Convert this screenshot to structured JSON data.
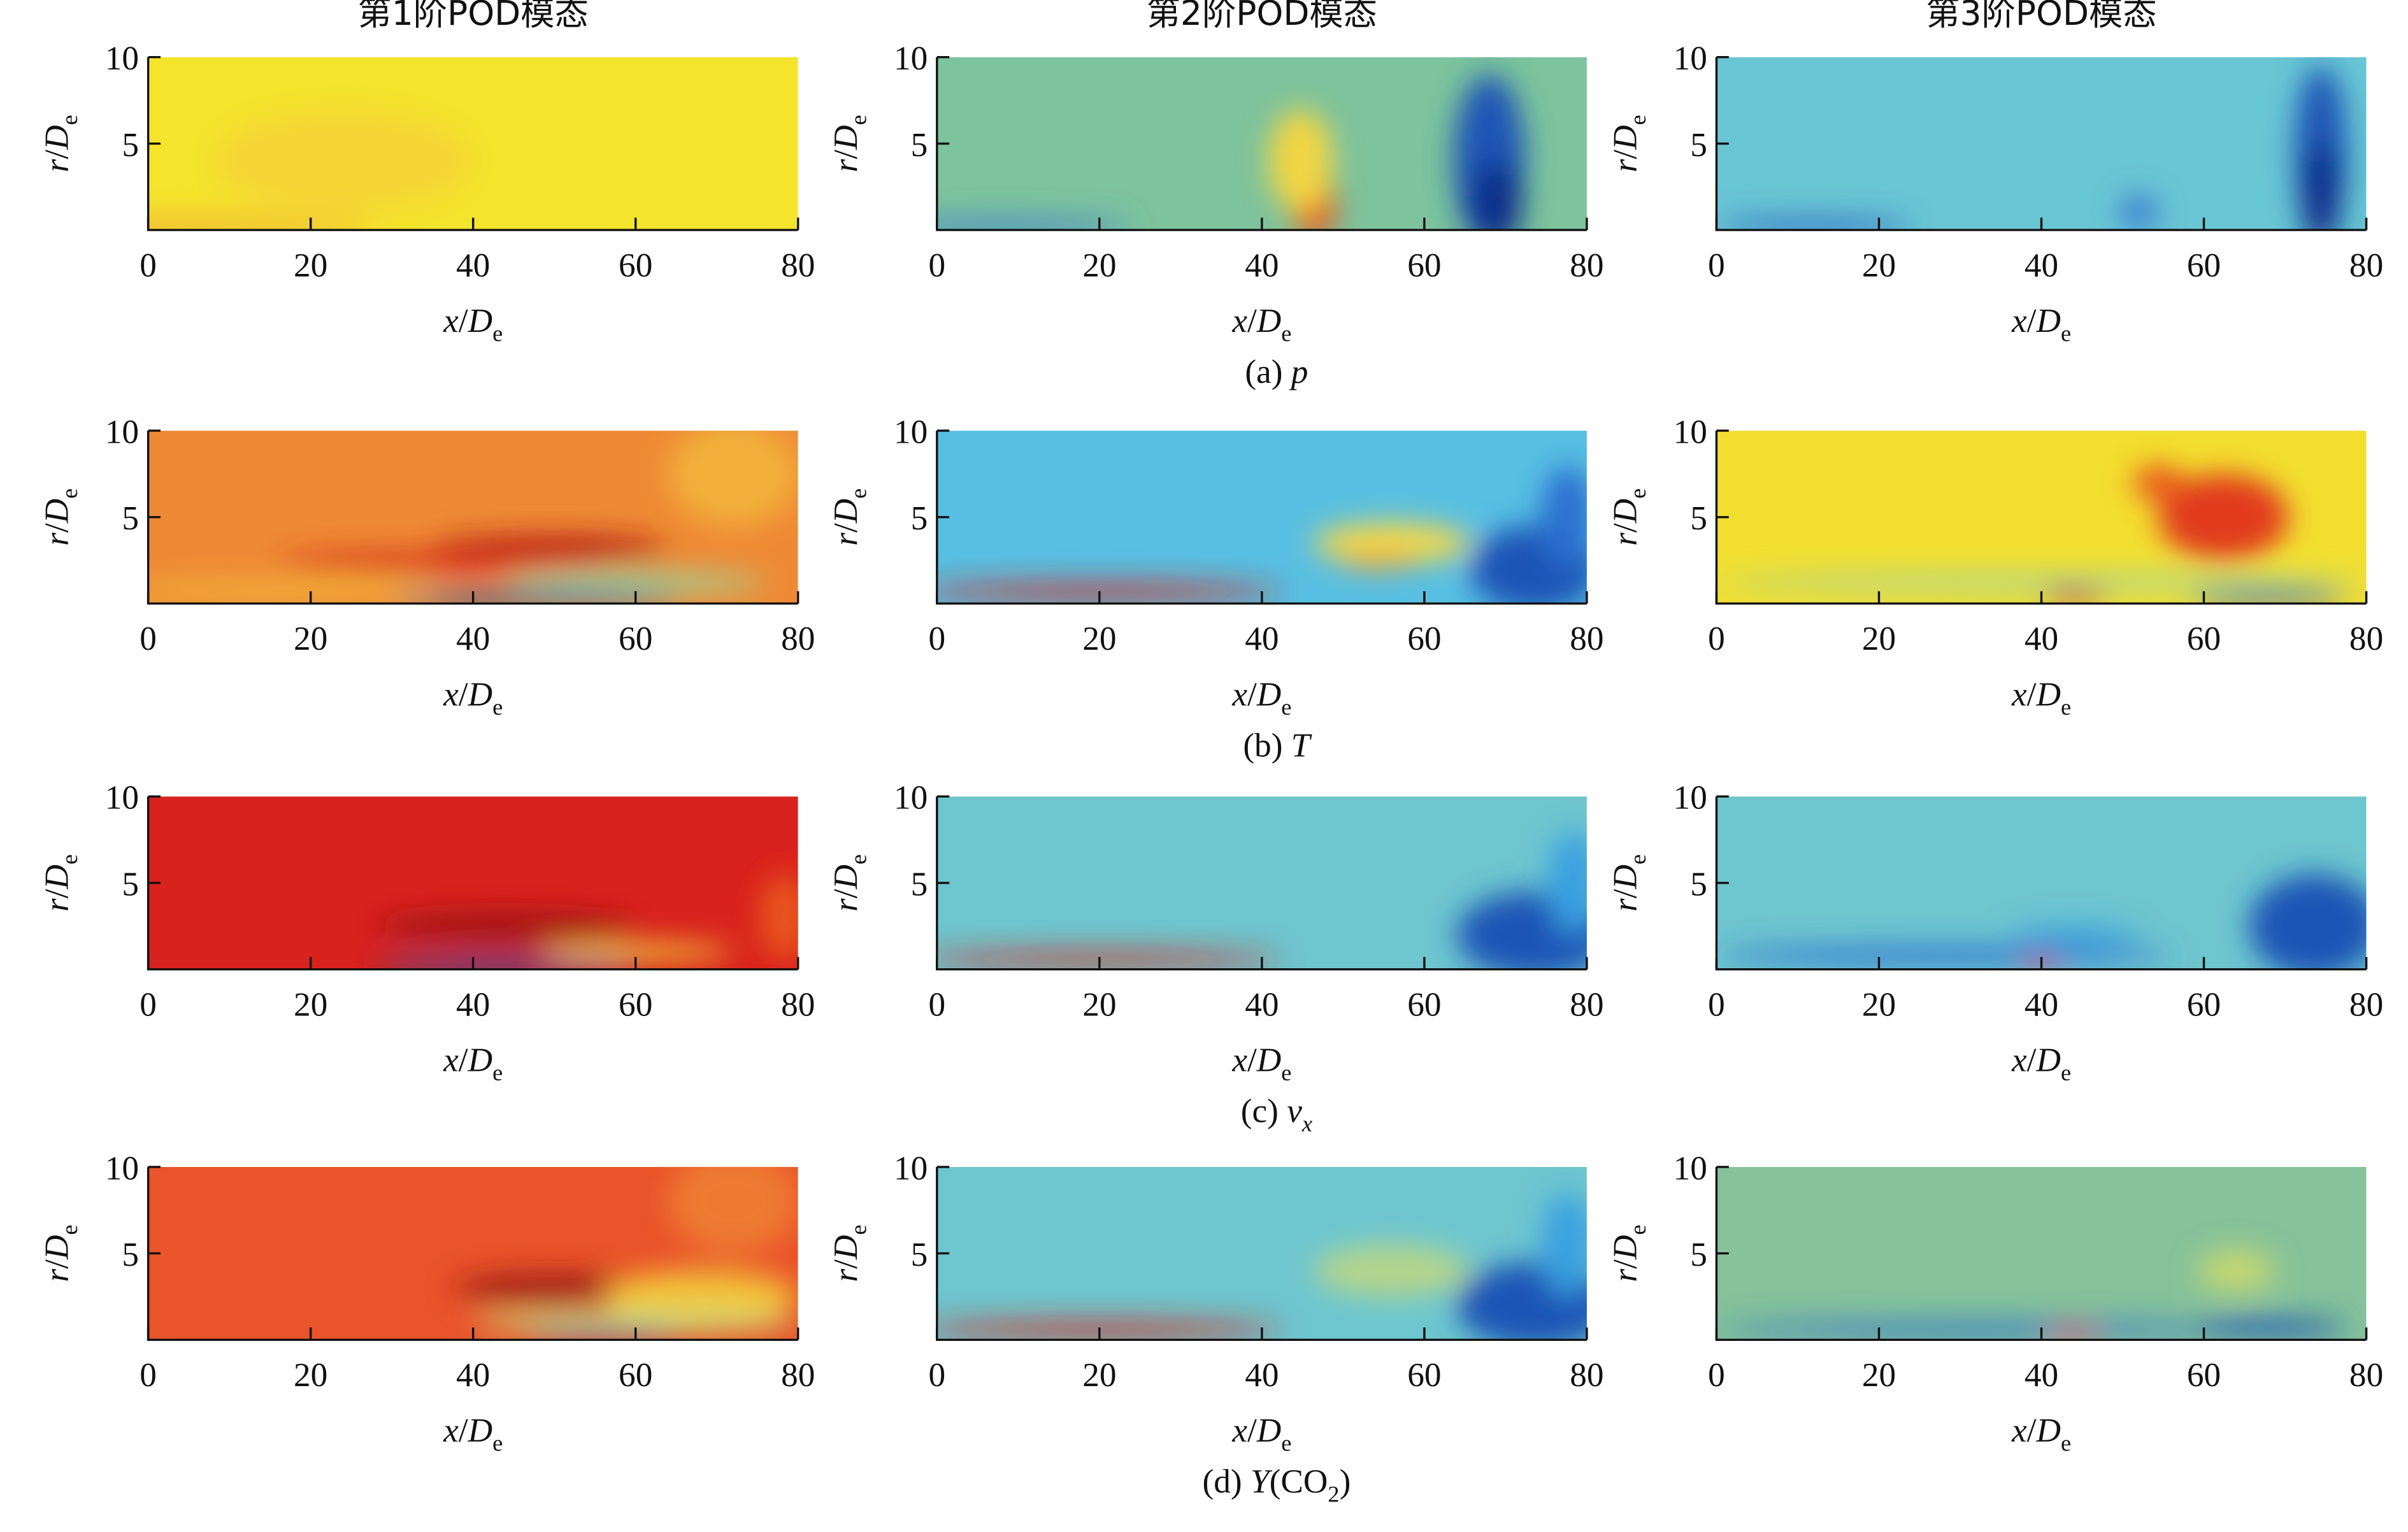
{
  "figure": {
    "columns": [
      "第1阶POD模态",
      "第2阶POD模态",
      "第3阶POD模态"
    ],
    "rows": [
      {
        "caption": [
          {
            "text": "(a) "
          },
          {
            "text": "p",
            "style": "italic"
          }
        ]
      },
      {
        "caption": [
          {
            "text": "(b) "
          },
          {
            "text": "T",
            "style": "italic"
          }
        ]
      },
      {
        "caption": [
          {
            "text": "(c) "
          },
          {
            "text": "v",
            "style": "italic"
          },
          {
            "text": "x",
            "style": "italic-sub"
          }
        ]
      },
      {
        "caption": [
          {
            "text": "(d) "
          },
          {
            "text": "Y",
            "style": "italic"
          },
          {
            "text": "(CO"
          },
          {
            "text": "2",
            "style": "sub"
          },
          {
            "text": ")"
          }
        ]
      }
    ],
    "xlabel": [
      {
        "text": "x",
        "style": "italic"
      },
      {
        "text": "/"
      },
      {
        "text": "D",
        "style": "italic"
      },
      {
        "text": "e",
        "style": "sub"
      }
    ],
    "ylabel": [
      {
        "text": "r",
        "style": "italic"
      },
      {
        "text": "/"
      },
      {
        "text": "D",
        "style": "italic"
      },
      {
        "text": "e",
        "style": "sub"
      }
    ],
    "xlim": [
      0,
      80
    ],
    "xticks": [
      0,
      20,
      40,
      60,
      80
    ],
    "ylim": [
      0,
      10
    ],
    "yticks": [
      5,
      10
    ]
  }
}
